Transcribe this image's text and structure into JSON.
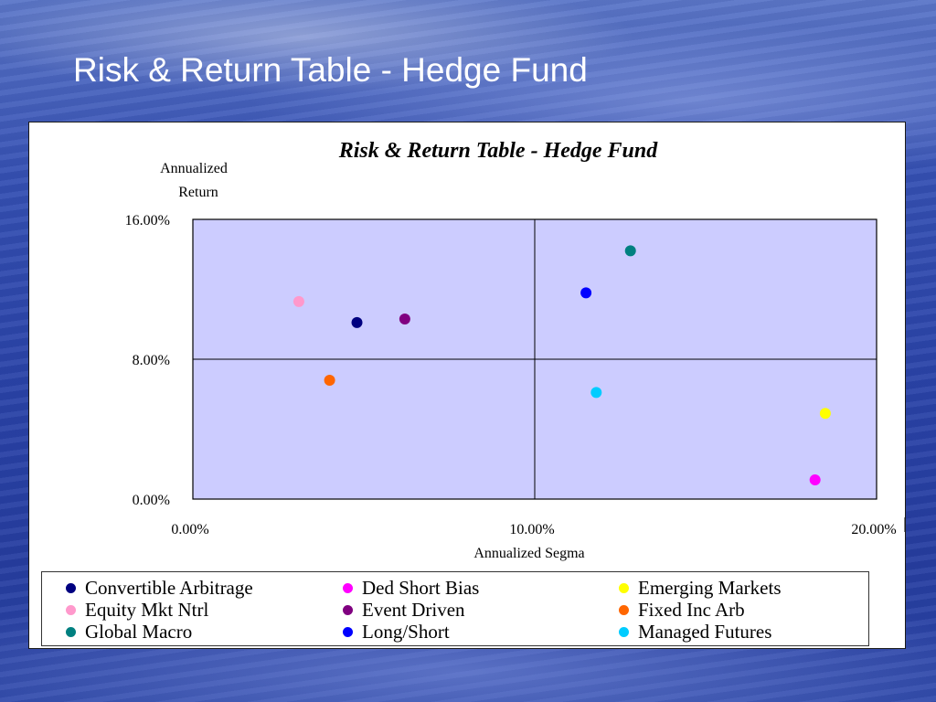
{
  "slide": {
    "title": "Risk & Return Table - Hedge Fund"
  },
  "chart_data": {
    "type": "scatter",
    "title": "Risk & Return Table - Hedge Fund",
    "xlabel": "Annualized Segma",
    "ylabel_lines": [
      "Annualized",
      "Return"
    ],
    "xlim": [
      0,
      20
    ],
    "ylim": [
      0,
      16
    ],
    "x_ticks": [
      {
        "value": 0,
        "label": "0.00%"
      },
      {
        "value": 10,
        "label": "10.00%"
      },
      {
        "value": 20,
        "label": "20.00%"
      }
    ],
    "y_ticks": [
      {
        "value": 0,
        "label": "0.00%"
      },
      {
        "value": 8,
        "label": "8.00%"
      },
      {
        "value": 16,
        "label": "16.00%"
      }
    ],
    "quadrant_lines": {
      "x": 10,
      "y": 8
    },
    "grid": false,
    "plot_background": "#ccccff",
    "legend_placement": "bottom",
    "series": [
      {
        "name": "Convertible Arbitrage",
        "color": "#000080",
        "x": 4.8,
        "y": 10.1
      },
      {
        "name": "Ded Short Bias",
        "color": "#ff00ff",
        "x": 18.2,
        "y": 1.1
      },
      {
        "name": "Emerging Markets",
        "color": "#ffff00",
        "x": 18.5,
        "y": 4.9
      },
      {
        "name": "Equity Mkt Ntrl",
        "color": "#ff99cc",
        "x": 3.1,
        "y": 11.3
      },
      {
        "name": "Event Driven",
        "color": "#800080",
        "x": 6.2,
        "y": 10.3
      },
      {
        "name": "Fixed Inc Arb",
        "color": "#ff6600",
        "x": 4.0,
        "y": 6.8
      },
      {
        "name": "Global Macro",
        "color": "#008080",
        "x": 12.8,
        "y": 14.2
      },
      {
        "name": "Long/Short",
        "color": "#0000ff",
        "x": 11.5,
        "y": 11.8
      },
      {
        "name": "Managed Futures",
        "color": "#00ccff",
        "x": 11.8,
        "y": 6.1
      }
    ]
  }
}
